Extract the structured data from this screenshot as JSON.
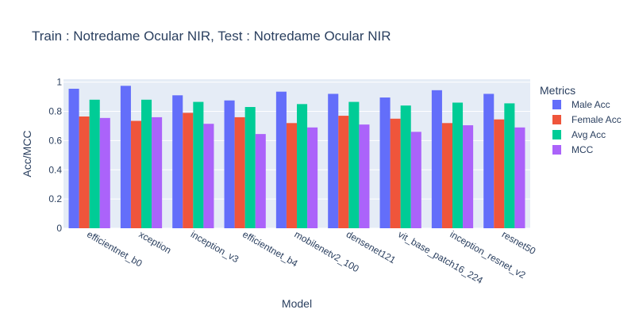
{
  "chart_data": {
    "type": "bar",
    "title": "Train : Notredame Ocular NIR, Test : Notredame Ocular NIR",
    "xlabel": "Model",
    "ylabel": "Acc/MCC",
    "ylim": [
      0,
      1.02
    ],
    "yticks": [
      0,
      0.2,
      0.4,
      0.6,
      0.8,
      1
    ],
    "grid": true,
    "legend_title": "Metrics",
    "legend_position": "right",
    "categories": [
      "efficientnet_b0",
      "xception",
      "inception_v3",
      "efficientnet_b4",
      "mobilenetv2_100",
      "densenet121",
      "vit_base_patch16_224",
      "inception_resnet_v2",
      "resnet50"
    ],
    "series": [
      {
        "name": "Male Acc",
        "color": "#636efa",
        "values": [
          0.955,
          0.975,
          0.91,
          0.875,
          0.935,
          0.92,
          0.895,
          0.945,
          0.92
        ]
      },
      {
        "name": "Female Acc",
        "color": "#ef553b",
        "values": [
          0.765,
          0.735,
          0.79,
          0.76,
          0.72,
          0.77,
          0.75,
          0.72,
          0.745
        ]
      },
      {
        "name": "Avg Acc",
        "color": "#00cc96",
        "values": [
          0.88,
          0.88,
          0.865,
          0.83,
          0.85,
          0.865,
          0.84,
          0.86,
          0.855
        ]
      },
      {
        "name": "MCC",
        "color": "#ab63fa",
        "values": [
          0.755,
          0.76,
          0.715,
          0.645,
          0.69,
          0.71,
          0.66,
          0.705,
          0.69
        ]
      }
    ]
  }
}
